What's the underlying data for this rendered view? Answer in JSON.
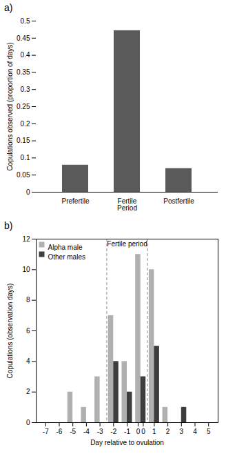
{
  "chart_data": [
    {
      "type": "bar",
      "title": "a)",
      "categories": [
        "Prefertile",
        "Fertile\nPeriod",
        "Postfertile"
      ],
      "values": [
        0.079,
        0.472,
        0.069
      ],
      "color": "#5a5a5a",
      "ylabel": "Copulations observed (proportion of days)",
      "ylim": [
        0,
        0.5
      ],
      "yticks": [
        0,
        0.05,
        0.1,
        0.15,
        0.2,
        0.25,
        0.3,
        0.35,
        0.4,
        0.45,
        0.5
      ]
    },
    {
      "type": "bar",
      "title": "b)",
      "x": [
        -7,
        -6,
        -5,
        -4,
        -3,
        -2,
        -1,
        0,
        1,
        2,
        3,
        4,
        5
      ],
      "series": [
        {
          "name": "Alpha male",
          "color": "#b0b0b0",
          "values": [
            0,
            0,
            2,
            1,
            3,
            7,
            4,
            11,
            10,
            1,
            0,
            0,
            0
          ]
        },
        {
          "name": "Other males",
          "color": "#3d3d3d",
          "values": [
            0,
            0,
            0,
            0,
            0,
            4,
            2,
            3,
            5,
            0,
            1,
            0,
            0
          ]
        }
      ],
      "xlabel": "Day relative to ovulation",
      "ylabel": "Copulations (observation days)",
      "xlim": [
        -7.7,
        5.7
      ],
      "xticks": [
        -7,
        -6,
        -5,
        -4,
        -3,
        -2,
        -1,
        {
          "value": -0.19,
          "label": "0"
        },
        {
          "value": 0.19,
          "label": "0"
        },
        1,
        2,
        3,
        4,
        5
      ],
      "ylim": [
        0,
        12
      ],
      "yticks": [
        0,
        2,
        4,
        6,
        8,
        10,
        12
      ],
      "legend": "upper left",
      "vlines": [
        -2.5,
        0.5
      ],
      "annotation": "Fertile period"
    }
  ]
}
